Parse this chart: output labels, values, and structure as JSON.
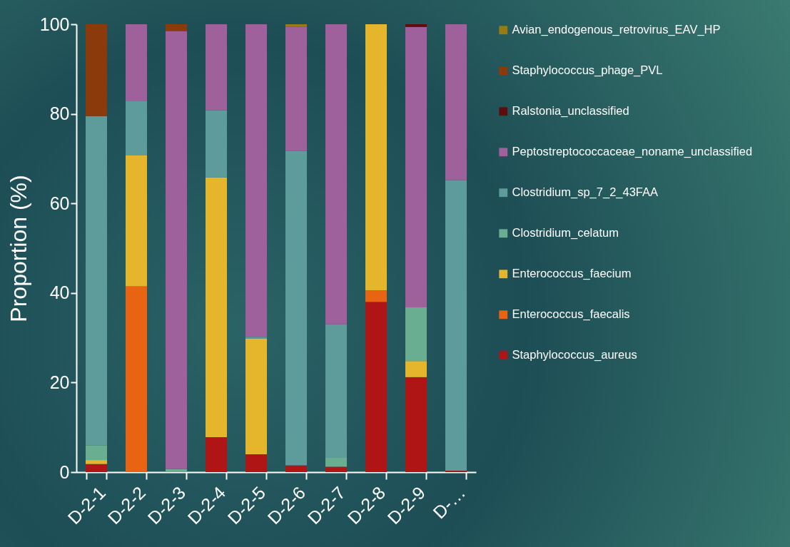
{
  "chart_data": {
    "type": "bar",
    "stacked": true,
    "ylabel": "Proportion (%)",
    "categories": [
      "D-2-1",
      "D-2-2",
      "D-2-3",
      "D-2-4",
      "D-2-5",
      "D-2-6",
      "D-2-7",
      "D-2-8",
      "D-2-9",
      "D-…"
    ],
    "series": [
      {
        "name": "Staphylococcus_aureus",
        "color": "#b01515",
        "values": [
          1.8,
          0,
          0,
          7.8,
          4,
          1.5,
          1.2,
          38,
          21.2,
          0.3
        ]
      },
      {
        "name": "Enterococcus_faecalis",
        "color": "#e86412",
        "values": [
          0,
          41.5,
          0,
          0,
          0,
          0,
          0,
          2.6,
          0,
          0
        ]
      },
      {
        "name": "Enterococcus_faecium",
        "color": "#e5b62b",
        "values": [
          0.9,
          29.2,
          0,
          58,
          25.8,
          0,
          0,
          59.4,
          3.6,
          0
        ]
      },
      {
        "name": "Clostridium_celatum",
        "color": "#6aae92",
        "values": [
          3.3,
          0,
          0.7,
          0,
          0,
          0,
          2,
          0,
          12,
          0
        ]
      },
      {
        "name": "Clostridium_sp_7_2_43FAA",
        "color": "#5e9c9c",
        "values": [
          73.5,
          12.1,
          0,
          15,
          0.4,
          70.2,
          29.8,
          0,
          0,
          64.9
        ]
      },
      {
        "name": "Peptostreptococcaceae_noname_unclassified",
        "color": "#9e619c",
        "values": [
          0,
          17.2,
          97.8,
          19.2,
          69.8,
          27.8,
          67,
          0,
          62.6,
          34.8
        ]
      },
      {
        "name": "Ralstonia_unclassified",
        "color": "#5e0c0c",
        "values": [
          0,
          0,
          0,
          0,
          0,
          0,
          0,
          0,
          0.6,
          0
        ]
      },
      {
        "name": "Staphylococcus_phage_PVL",
        "color": "#8b3a0c",
        "values": [
          20.5,
          0,
          1.5,
          0,
          0,
          0,
          0,
          0,
          0,
          0
        ]
      },
      {
        "name": "Avian_endogenous_retrovirus_EAV_HP",
        "color": "#9a7a12",
        "values": [
          0,
          0,
          0,
          0,
          0,
          0.5,
          0,
          0,
          0,
          0
        ]
      }
    ],
    "ylim": [
      0,
      100
    ],
    "yticks": [
      0,
      20,
      40,
      60,
      80,
      100
    ],
    "grid": false,
    "legend": "right"
  }
}
